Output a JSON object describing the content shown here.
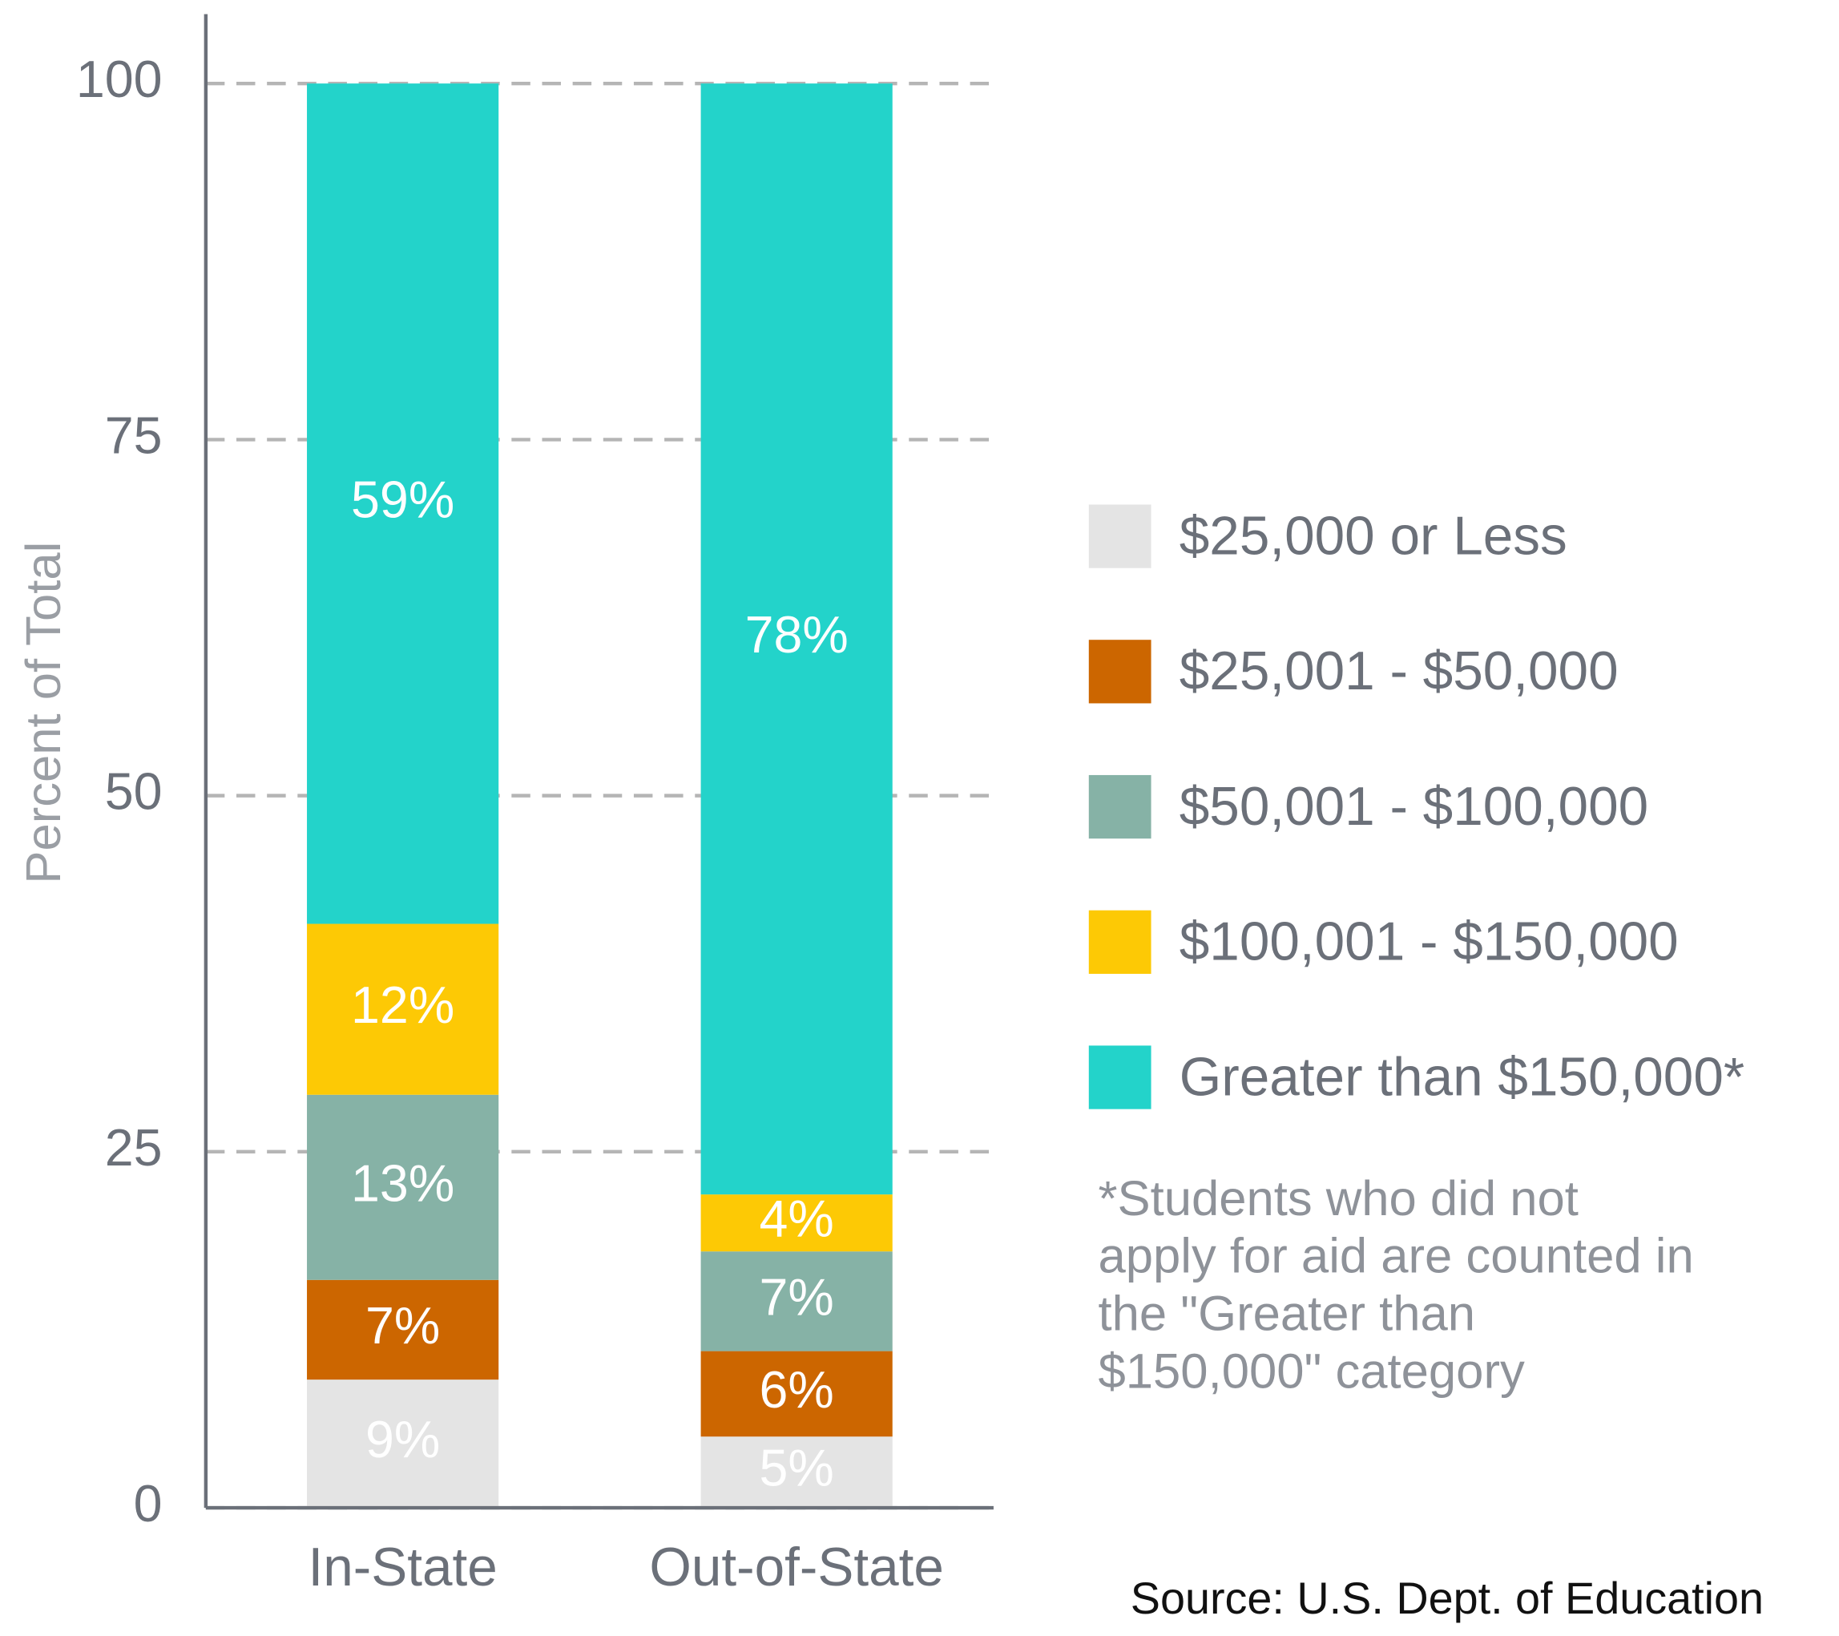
{
  "chart_data": {
    "type": "stacked_bar",
    "y_label": "Percent of Total",
    "categories": [
      "In-State",
      "Out-of-State"
    ],
    "series": [
      {
        "name": "$25,000 or Less",
        "color": "#e4e4e4",
        "values": [
          9,
          5
        ],
        "value_labels": [
          "9%",
          "5%"
        ]
      },
      {
        "name": "$25,001 - $50,000",
        "color": "#cc6600",
        "values": [
          7,
          6
        ],
        "value_labels": [
          "7%",
          "6%"
        ]
      },
      {
        "name": "$50,001 - $100,000",
        "color": "#86b2a6",
        "values": [
          13,
          7
        ],
        "value_labels": [
          "13%",
          "7%"
        ]
      },
      {
        "name": "$100,001 - $150,000",
        "color": "#fdc905",
        "values": [
          12,
          4
        ],
        "value_labels": [
          "12%",
          "4%"
        ]
      },
      {
        "name": "Greater than $150,000*",
        "color": "#23d3ca",
        "values": [
          59,
          78
        ],
        "value_labels": [
          "59%",
          "78%"
        ]
      }
    ],
    "ylim": [
      0,
      100
    ],
    "yticks": [
      0,
      25,
      50,
      75,
      100
    ],
    "grid": true,
    "legend": "right",
    "note": [
      "*Students who did not",
      "apply for aid are counted in",
      "the \"Greater than",
      "$150,000\" category"
    ],
    "source": "Source: U.S. Dept. of Education"
  }
}
